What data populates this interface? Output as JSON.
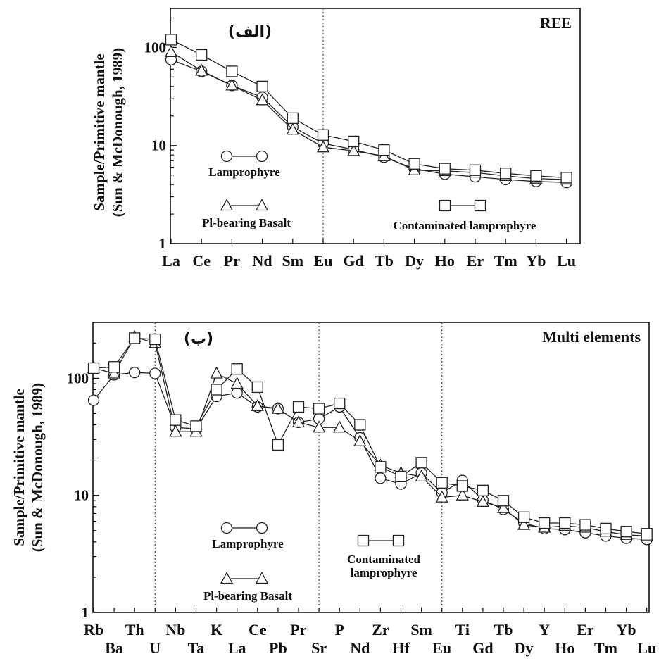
{
  "chart_data": [
    {
      "type": "line",
      "panel_tag": "(الف)",
      "title": "REE",
      "ylabel_line1": "Sample/Primitive mantle",
      "ylabel_line2": "(Sun & McDonough, 1989)",
      "yscale": "log",
      "ylim": [
        1,
        250
      ],
      "yticks": [
        1,
        10,
        100
      ],
      "ytick_labels": [
        "1",
        "10",
        "100"
      ],
      "grid": false,
      "categories": [
        "La",
        "Ce",
        "Pr",
        "Nd",
        "Sm",
        "Eu",
        "Gd",
        "Tb",
        "Dy",
        "Ho",
        "Er",
        "Tm",
        "Yb",
        "Lu"
      ],
      "dividers_after": [
        "Eu"
      ],
      "series": [
        {
          "name": "Lamprophyre",
          "marker": "circle",
          "values": [
            75,
            57,
            41,
            31,
            15.5,
            10.5,
            9.1,
            7.6,
            5.8,
            5.1,
            4.8,
            4.5,
            4.3,
            4.2
          ]
        },
        {
          "name": "Pl-bearing Basalt",
          "marker": "triangle",
          "values": [
            90,
            58,
            41,
            29,
            14.5,
            9.6,
            8.8,
            7.8,
            5.6,
            5.5,
            5.3,
            4.9,
            4.6,
            4.5
          ]
        },
        {
          "name": "Contaminated lamprophyre",
          "marker": "square",
          "values": [
            120,
            84,
            57,
            40,
            19,
            12.8,
            11,
            9,
            6.5,
            5.8,
            5.6,
            5.2,
            4.9,
            4.7
          ]
        }
      ],
      "legend": [
        {
          "series": "Lamprophyre",
          "label": "Lamprophyre",
          "label_lines": [
            "Lamprophyre"
          ]
        },
        {
          "series": "Pl-bearing Basalt",
          "label": "Pl-bearing Basalt",
          "label_lines": [
            "Pl-bearing Basalt"
          ]
        },
        {
          "series": "Contaminated lamprophyre",
          "label": "Contaminated lamprophyre",
          "label_lines": [
            "Contaminated lamprophyre"
          ]
        }
      ]
    },
    {
      "type": "line",
      "panel_tag": "(ب)",
      "title": "Multi elements",
      "ylabel_line1": "Sample/Primitive mantle",
      "ylabel_line2": "(Sun & McDonough, 1989)",
      "yscale": "log",
      "ylim": [
        1,
        300
      ],
      "yticks": [
        1,
        10,
        100
      ],
      "ytick_labels": [
        "1",
        "10",
        "100"
      ],
      "grid": false,
      "categories": [
        "Rb",
        "Ba",
        "Th",
        "U",
        "Nb",
        "Ta",
        "K",
        "La",
        "Ce",
        "Pb",
        "Pr",
        "Sr",
        "P",
        "Nd",
        "Zr",
        "Hf",
        "Sm",
        "Eu",
        "Ti",
        "Gd",
        "Tb",
        "Dy",
        "Y",
        "Ho",
        "Er",
        "Tm",
        "Yb",
        "Lu"
      ],
      "dividers_after": [
        "U",
        "Sr",
        "Eu"
      ],
      "series": [
        {
          "name": "Lamprophyre",
          "marker": "circle",
          "values": [
            65,
            107,
            112,
            110,
            38,
            37,
            70,
            75,
            57,
            55,
            42,
            45,
            57,
            31,
            14,
            12.5,
            15.5,
            10.5,
            13.4,
            9.1,
            7.6,
            5.8,
            5.2,
            5.1,
            4.8,
            4.5,
            4.3,
            4.2
          ]
        },
        {
          "name": "Pl-bearing Basalt",
          "marker": "triangle",
          "values": [
            122,
            110,
            225,
            200,
            35,
            35,
            110,
            90,
            58,
            55,
            42,
            38,
            38,
            29,
            18,
            15.5,
            14.5,
            9.6,
            10,
            8.8,
            7.8,
            5.6,
            5.3,
            5.5,
            5.3,
            4.9,
            4.6,
            4.5
          ]
        },
        {
          "name": "Contaminated lamprophyre",
          "marker": "square",
          "values": [
            122,
            125,
            220,
            215,
            44,
            39,
            80,
            120,
            84,
            27,
            57,
            55,
            61,
            40,
            17.5,
            14.5,
            19,
            12.8,
            12,
            11,
            9,
            6.5,
            5.8,
            5.8,
            5.6,
            5.2,
            4.9,
            4.7
          ]
        }
      ],
      "legend": [
        {
          "series": "Lamprophyre",
          "label": "Lamprophyre",
          "label_lines": [
            "Lamprophyre"
          ]
        },
        {
          "series": "Pl-bearing Basalt",
          "label": "Pl-bearing Basalt",
          "label_lines": [
            "Pl-bearing Basalt"
          ]
        },
        {
          "series": "Contaminated lamprophyre",
          "label": "Contaminated lamprophyre",
          "label_lines": [
            "Contaminated",
            "lamprophyre"
          ]
        }
      ]
    }
  ]
}
